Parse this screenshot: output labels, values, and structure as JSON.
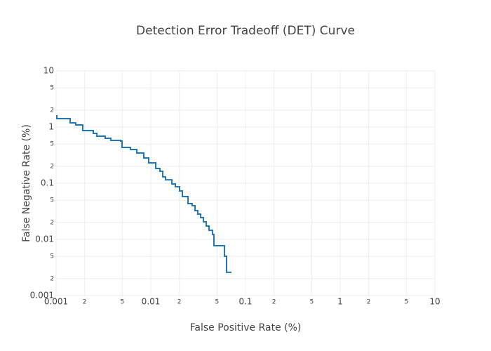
{
  "chart_data": {
    "type": "line",
    "title": "Detection Error Tradeoff (DET) Curve",
    "x_label": "False Positive Rate (%)",
    "y_label": "False Negative Rate (%)",
    "x_log": true,
    "y_log": true,
    "grid": true,
    "line_shape": "hv",
    "xlim": [
      0.001,
      10
    ],
    "ylim": [
      0.001,
      10
    ],
    "xticks": [
      0.001,
      {
        "value": 0.002,
        "label": "2"
      },
      {
        "value": 0.005,
        "label": "5"
      },
      0.01,
      {
        "value": 0.02,
        "label": "2"
      },
      {
        "value": 0.05,
        "label": "5"
      },
      0.1,
      {
        "value": 0.2,
        "label": "2"
      },
      {
        "value": 0.5,
        "label": "5"
      },
      1,
      {
        "value": 2,
        "label": "2"
      },
      {
        "value": 5,
        "label": "5"
      },
      10
    ],
    "yticks": [
      0.001,
      {
        "value": 0.002,
        "label": "2"
      },
      {
        "value": 0.005,
        "label": "5"
      },
      0.01,
      {
        "value": 0.02,
        "label": "2"
      },
      {
        "value": 0.05,
        "label": "5"
      },
      0.1,
      {
        "value": 0.2,
        "label": "2"
      },
      {
        "value": 0.5,
        "label": "5"
      },
      1,
      {
        "value": 2,
        "label": "2"
      },
      {
        "value": 5,
        "label": "5"
      },
      10
    ],
    "series": [
      {
        "color": "#1f77b4",
        "x": [
          0.001017,
          0.001017,
          0.001406,
          0.00161,
          0.00191,
          0.00247,
          0.00269,
          0.0033,
          0.00378,
          0.0048,
          0.00497,
          0.0061,
          0.00711,
          0.00843,
          0.0095,
          0.01127,
          0.01248,
          0.01337,
          0.01432,
          0.01668,
          0.01816,
          0.02012,
          0.02154,
          0.0247,
          0.02735,
          0.0293,
          0.0313,
          0.0336,
          0.036,
          0.0385,
          0.0412,
          0.0449,
          0.0464,
          0.0464,
          0.06,
          0.0631,
          0.0711
        ],
        "values": [
          1.632,
          1.413,
          1.189,
          1.09,
          0.866,
          0.772,
          0.688,
          0.631,
          0.579,
          0.562,
          0.434,
          0.398,
          0.345,
          0.282,
          0.23,
          0.183,
          0.163,
          0.13,
          0.115,
          0.0972,
          0.0866,
          0.0729,
          0.0579,
          0.0434,
          0.0398,
          0.0326,
          0.0282,
          0.0244,
          0.0205,
          0.0173,
          0.0145,
          0.0122,
          0.0103,
          0.00772,
          0.00501,
          0.00259,
          0.00259
        ]
      }
    ]
  }
}
